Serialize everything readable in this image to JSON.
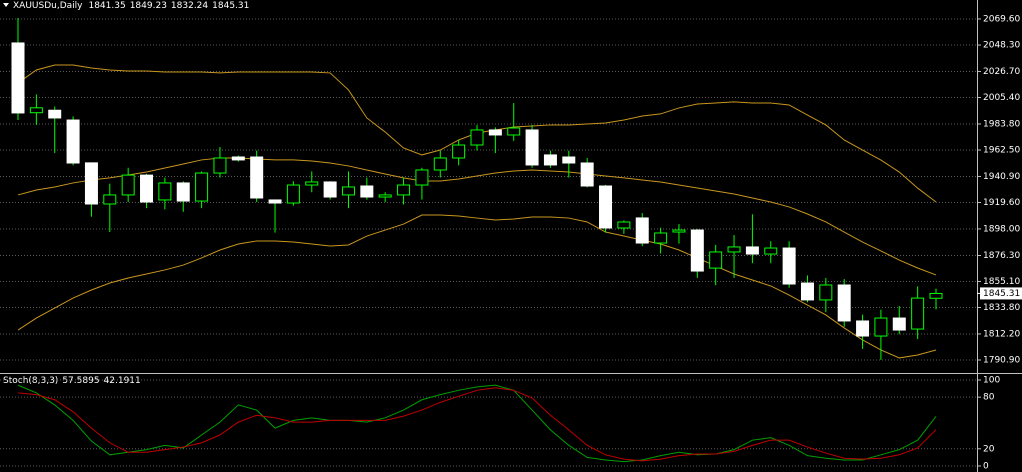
{
  "chart_data": [
    {
      "type": "candlestick",
      "title": "XAUUSDu,Daily",
      "header_values": [
        1841.35,
        1849.23,
        1832.24,
        1845.31
      ],
      "open": [
        2050,
        1993,
        1995,
        1987,
        1952,
        1918.4,
        1925.8,
        1942,
        1921.7,
        1935.6,
        1920.8,
        1943.7,
        1956.8,
        1956.8,
        1921.7,
        1919.2,
        1933.9,
        1936.4,
        1925.8,
        1933.1,
        1924.1,
        1925.8,
        1933.9,
        1946.2,
        1956,
        1966.6,
        1978.9,
        1974.8,
        1978.9,
        1958.5,
        1956.8,
        1951.9,
        1933.1,
        1898.8,
        1907,
        1886.5,
        1895.5,
        1897.1,
        1866,
        1879.2,
        1883.3,
        1877.5,
        1882.4,
        1853.8,
        1840,
        1852.2,
        1822.8,
        1810.5,
        1825.2,
        1816.2,
        1841.35
      ],
      "high": [
        2070.4,
        2008,
        1998,
        1990,
        1952,
        1935,
        1948,
        1943,
        1940,
        1937,
        1945,
        1965,
        1958,
        1962,
        1922,
        1937,
        1945,
        1937,
        1945,
        1940,
        1928,
        1940,
        1948,
        1962,
        1971,
        1983,
        1981,
        2000.9,
        1983,
        1962,
        1962,
        1956,
        1934,
        1905,
        1911,
        1899,
        1902,
        1898,
        1885,
        1893,
        1910,
        1888,
        1888,
        1860,
        1858,
        1857,
        1828,
        1832,
        1835,
        1851,
        1849.23
      ],
      "low": [
        1987,
        1983,
        1960,
        1950,
        1908,
        1895.5,
        1920,
        1915,
        1914,
        1912,
        1915,
        1940,
        1953,
        1920,
        1895,
        1917,
        1928,
        1922,
        1915,
        1922,
        1920,
        1918,
        1922,
        1940,
        1950,
        1962,
        1960,
        1970,
        1948,
        1948,
        1940,
        1932,
        1895,
        1894,
        1884,
        1878,
        1886,
        1858,
        1852,
        1858,
        1870,
        1870,
        1850,
        1838,
        1830,
        1818,
        1800,
        1791,
        1812,
        1808,
        1832.24
      ],
      "close": [
        1992.8,
        1997,
        1988.7,
        1951.9,
        1918.4,
        1925.8,
        1942,
        1920,
        1935.6,
        1920.8,
        1943.7,
        1956,
        1954.4,
        1923.3,
        1919.2,
        1933.9,
        1936.4,
        1924.1,
        1932.3,
        1924.1,
        1925.8,
        1933.9,
        1946.2,
        1956,
        1966.6,
        1978.9,
        1974.8,
        1980.5,
        1950.3,
        1950.3,
        1951.9,
        1933.1,
        1898.8,
        1903.7,
        1886.5,
        1894.7,
        1897.1,
        1863.6,
        1879.2,
        1883.3,
        1877.5,
        1882.4,
        1853,
        1840,
        1852.2,
        1822.8,
        1810.5,
        1825.2,
        1815.4,
        1841.5,
        1845.31
      ],
      "up_color": "#00ff00",
      "down_color": "#ffffff",
      "bands": [
        {
          "color": "#c8961e",
          "values": [
            2017.3,
            2027.9,
            2032,
            2032,
            2029.5,
            2027.9,
            2027.1,
            2027.1,
            2026.3,
            2026.3,
            2026.3,
            2025.5,
            2026.3,
            2026.3,
            2026.3,
            2026.3,
            2026.3,
            2025.5,
            2011.6,
            1988.7,
            1977.2,
            1964.2,
            1958.5,
            1962.5,
            1970.7,
            1976.4,
            1978.9,
            1981.3,
            1982.1,
            1983,
            1983,
            1983.8,
            1984.6,
            1987,
            1990.3,
            1992,
            1996.9,
            2000.1,
            2000.9,
            2001.8,
            2000.9,
            2000.9,
            1999.3,
            1991.1,
            1983,
            1970.7,
            1962.5,
            1954.3,
            1944.5,
            1931.4,
            1920
          ]
        },
        {
          "color": "#c8961e",
          "values": [
            1925.8,
            1929.8,
            1932.3,
            1935.6,
            1938,
            1939.7,
            1942.1,
            1944.5,
            1947.8,
            1951.1,
            1954.4,
            1956,
            1956,
            1955.2,
            1954.4,
            1954.4,
            1953.5,
            1951.9,
            1949.5,
            1946.2,
            1942.9,
            1939.7,
            1937.2,
            1937.2,
            1938.8,
            1941.3,
            1943.7,
            1945.4,
            1946.2,
            1945.4,
            1944.5,
            1942.9,
            1941.3,
            1939.7,
            1938,
            1936.4,
            1933.9,
            1931.5,
            1929,
            1926.6,
            1923.3,
            1920,
            1916,
            1910.2,
            1903.7,
            1895.5,
            1887.3,
            1880,
            1872.6,
            1866.1,
            1860.4
          ]
        },
        {
          "color": "#c8961e",
          "values": [
            1815.4,
            1825.2,
            1833.4,
            1841.5,
            1848.1,
            1853.8,
            1857.9,
            1861.2,
            1864.5,
            1868.5,
            1874.3,
            1880.8,
            1885.7,
            1888.2,
            1888.2,
            1887.3,
            1885.7,
            1884.1,
            1884.9,
            1892.2,
            1897.1,
            1902,
            1909.4,
            1909.4,
            1908.6,
            1906.9,
            1905.3,
            1906.1,
            1907.8,
            1907.8,
            1906.9,
            1903.7,
            1895.5,
            1892.2,
            1888.9,
            1885.7,
            1880.8,
            1874.3,
            1867.7,
            1861.2,
            1856.3,
            1851.4,
            1844,
            1835.8,
            1827.7,
            1817.1,
            1807.3,
            1799.1,
            1792.6,
            1795,
            1799.1
          ]
        }
      ],
      "ylim": [
        1781.1,
        2085.1
      ],
      "yticks": [
        {
          "value": 2069.6,
          "label": "2069.60"
        },
        {
          "value": 2048.3,
          "label": "2048.30"
        },
        {
          "value": 2026.7,
          "label": "2026.70"
        },
        {
          "value": 2005.4,
          "label": "2005.40"
        },
        {
          "value": 1983.8,
          "label": "1983.80"
        },
        {
          "value": 1962.5,
          "label": "1962.50"
        },
        {
          "value": 1940.9,
          "label": "1940.90"
        },
        {
          "value": 1919.6,
          "label": "1919.60"
        },
        {
          "value": 1898,
          "label": "1898.00"
        },
        {
          "value": 1876.3,
          "label": "1876.30"
        },
        {
          "value": 1855.1,
          "label": "1855.10"
        },
        {
          "value": 1833.8,
          "label": "1833.80"
        },
        {
          "value": 1812.2,
          "label": "1812.20"
        },
        {
          "value": 1790.9,
          "label": "1790.90"
        }
      ],
      "grid": true
    },
    {
      "type": "line",
      "title": "Stoch(8,3,3)",
      "header_values": [
        57.5895,
        42.1911
      ],
      "series": [
        {
          "color": "#00a000",
          "values": [
            94,
            85,
            71,
            53,
            29,
            13,
            16,
            19,
            24,
            21,
            36,
            51,
            71,
            65,
            44,
            53,
            56,
            53,
            53,
            51,
            56,
            65,
            77,
            83,
            88,
            92,
            94,
            88,
            65,
            42,
            24,
            10,
            7,
            5,
            7,
            12,
            16,
            13,
            14,
            19,
            30,
            33,
            24,
            12,
            9,
            7,
            7,
            13,
            19,
            30,
            57.5895
          ]
        },
        {
          "color": "#c00000",
          "values": [
            85,
            83,
            77,
            63,
            44,
            27,
            16,
            16,
            19,
            22,
            27,
            36,
            51,
            59,
            56,
            51,
            51,
            53,
            53,
            53,
            53,
            58,
            65,
            74,
            81,
            88,
            91,
            88,
            79,
            59,
            42,
            24,
            13,
            8,
            6,
            8,
            12,
            14,
            14,
            17,
            24,
            30,
            30,
            22,
            15,
            9,
            8,
            9,
            13,
            21,
            42.1911
          ]
        }
      ],
      "ylim": [
        -7,
        105.8
      ],
      "yticks": [
        0,
        20,
        80,
        100
      ],
      "grid": true
    }
  ]
}
